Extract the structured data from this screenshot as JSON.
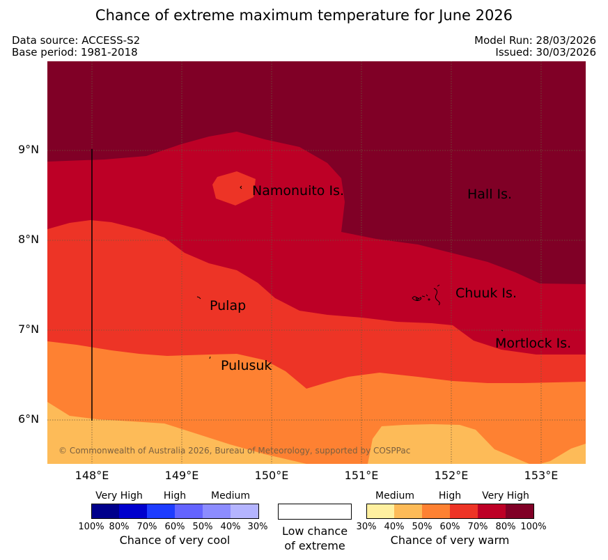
{
  "header": {
    "title": "Chance of extreme maximum temperature for June 2026",
    "data_source": "Data source: ACCESS-S2",
    "base_period": "Base period: 1981-2018",
    "model_run": "Model Run: 28/03/2026",
    "issued": "Issued: 30/03/2026"
  },
  "map": {
    "lat_labels": [
      "9°N",
      "8°N",
      "7°N",
      "6°N"
    ],
    "lon_labels": [
      "148°E",
      "149°E",
      "150°E",
      "151°E",
      "152°E",
      "153°E"
    ],
    "places": {
      "namonuito": "Namonuito Is.",
      "hall": "Hall Is.",
      "pulap": "Pulap",
      "chuuk": "Chuuk Is.",
      "mortlock": "Mortlock Is.",
      "pulusuk": "Pulusuk"
    },
    "copyright": "© Commonwealth of Australia 2026, Bureau of Meteorology, supported by COSPPac"
  },
  "legend": {
    "cool": {
      "levels": [
        "Very High",
        "High",
        "Medium"
      ],
      "ticks": [
        "100%",
        "80%",
        "70%",
        "60%",
        "50%",
        "40%",
        "30%"
      ],
      "title": "Chance of very cool",
      "colors": [
        "#00008b",
        "#0000cd",
        "#1e3cff",
        "#6464ff",
        "#8c8cff",
        "#b4b4ff"
      ]
    },
    "neutral": {
      "line1": "Low chance",
      "line2": "of extreme"
    },
    "warm": {
      "levels": [
        "Medium",
        "High",
        "Very High"
      ],
      "ticks": [
        "30%",
        "40%",
        "50%",
        "60%",
        "70%",
        "80%",
        "100%"
      ],
      "title": "Chance of very warm",
      "colors": [
        "#fff0a0",
        "#fdbb58",
        "#fe8132",
        "#ed3426",
        "#bd0026",
        "#800026"
      ]
    }
  }
}
